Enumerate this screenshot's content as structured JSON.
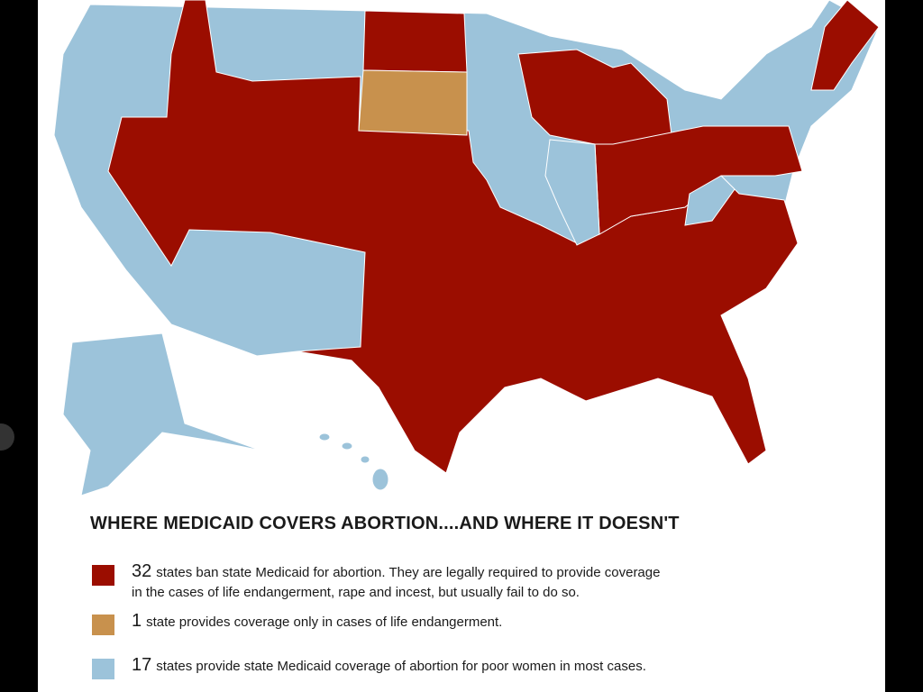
{
  "title": "WHERE MEDICAID COVERS ABORTION....AND WHERE IT DOESN'T",
  "legend": [
    {
      "count": 32,
      "lines": [
        "states ban state Medicaid for abortion. They are legally required to provide coverage",
        "in the cases of life endangerment, rape and incest, but usually fail to do so."
      ]
    },
    {
      "count": 1,
      "lines": [
        "state provides coverage only in cases of life endangerment."
      ]
    },
    {
      "count": 17,
      "lines": [
        "states provide state Medicaid coverage of abortion for poor women in most cases."
      ]
    }
  ]
}
